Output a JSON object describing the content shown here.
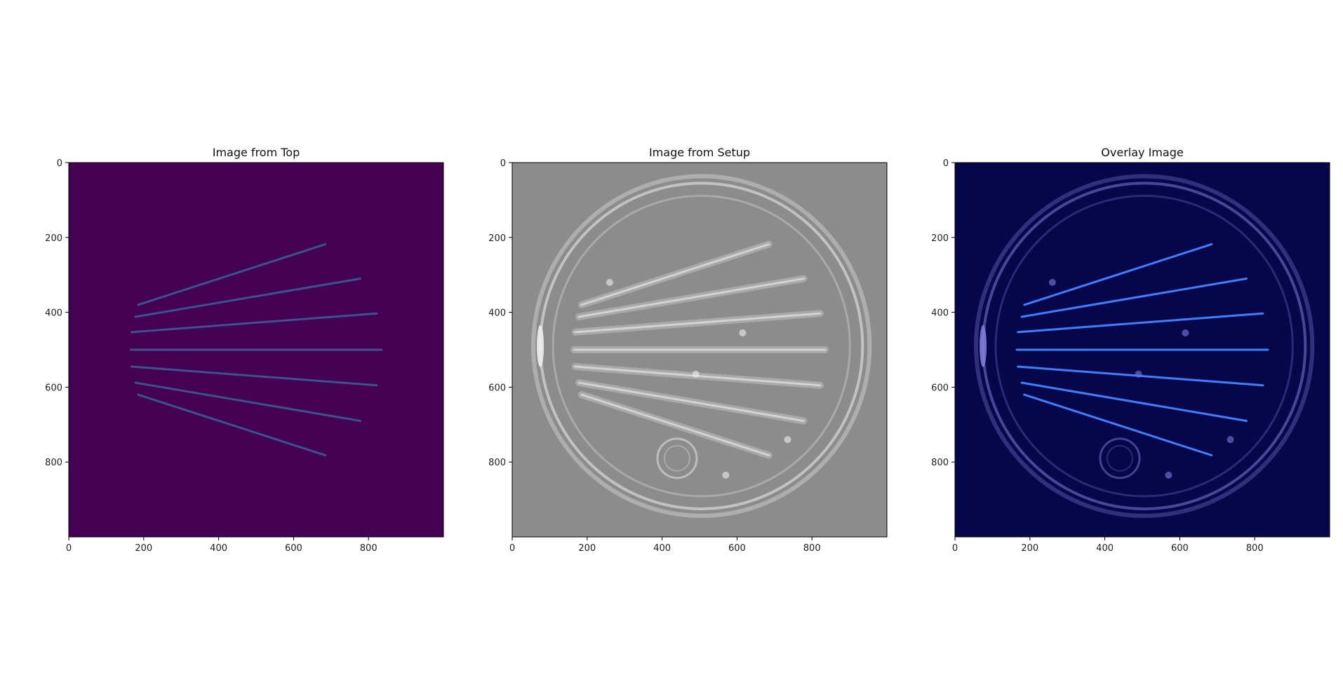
{
  "figure": {
    "background": "#ffffff"
  },
  "chart_data": [
    {
      "type": "image",
      "title": "Image from Top",
      "colormap": "viridis",
      "xlim": [
        0,
        1000
      ],
      "ylim": [
        1000,
        0
      ],
      "xticks": [
        0,
        200,
        400,
        600,
        800
      ],
      "yticks": [
        0,
        200,
        400,
        600,
        800
      ],
      "x_tick_labels": [
        "0",
        "200",
        "400",
        "600",
        "800"
      ],
      "y_tick_labels": [
        "0",
        "200",
        "400",
        "600",
        "800"
      ],
      "background_color": "#440154",
      "line_color": "#3b528b",
      "radial_lines": [
        {
          "x1": 185,
          "y1": 380,
          "x2": 685,
          "y2": 218
        },
        {
          "x1": 178,
          "y1": 412,
          "x2": 778,
          "y2": 310
        },
        {
          "x1": 168,
          "y1": 453,
          "x2": 822,
          "y2": 403
        },
        {
          "x1": 165,
          "y1": 500,
          "x2": 835,
          "y2": 500
        },
        {
          "x1": 168,
          "y1": 545,
          "x2": 822,
          "y2": 595
        },
        {
          "x1": 178,
          "y1": 588,
          "x2": 778,
          "y2": 690
        },
        {
          "x1": 185,
          "y1": 620,
          "x2": 685,
          "y2": 782
        }
      ]
    },
    {
      "type": "image",
      "title": "Image from Setup",
      "colormap": "gray",
      "xlim": [
        0,
        1000
      ],
      "ylim": [
        1000,
        0
      ],
      "xticks": [
        0,
        200,
        400,
        600,
        800
      ],
      "yticks": [
        0,
        200,
        400,
        600,
        800
      ],
      "x_tick_labels": [
        "0",
        "200",
        "400",
        "600",
        "800"
      ],
      "y_tick_labels": [
        "0",
        "200",
        "400",
        "600",
        "800"
      ],
      "background_color": "#8c8c8c",
      "dish_center": [
        505,
        490
      ],
      "dish_radius_x": 430,
      "dish_radius_y": 435,
      "highlight_color": "#eeeeee",
      "radial_lines": [
        {
          "x1": 185,
          "y1": 380,
          "x2": 685,
          "y2": 218
        },
        {
          "x1": 178,
          "y1": 412,
          "x2": 778,
          "y2": 310
        },
        {
          "x1": 168,
          "y1": 453,
          "x2": 822,
          "y2": 403
        },
        {
          "x1": 165,
          "y1": 500,
          "x2": 835,
          "y2": 500
        },
        {
          "x1": 168,
          "y1": 545,
          "x2": 822,
          "y2": 595
        },
        {
          "x1": 178,
          "y1": 588,
          "x2": 778,
          "y2": 690
        },
        {
          "x1": 185,
          "y1": 620,
          "x2": 685,
          "y2": 782
        }
      ]
    },
    {
      "type": "image",
      "title": "Overlay Image",
      "colormap": "blue overlay",
      "xlim": [
        0,
        1000
      ],
      "ylim": [
        1000,
        0
      ],
      "xticks": [
        0,
        200,
        400,
        600,
        800
      ],
      "yticks": [
        0,
        200,
        400,
        600,
        800
      ],
      "x_tick_labels": [
        "0",
        "200",
        "400",
        "600",
        "800"
      ],
      "y_tick_labels": [
        "0",
        "200",
        "400",
        "600",
        "800"
      ],
      "background_color": "#06064a",
      "dish_center": [
        505,
        490
      ],
      "dish_radius_x": 430,
      "dish_radius_y": 435,
      "highlight_color": "#7d7dd8",
      "line_color": "#3f7fff",
      "radial_lines": [
        {
          "x1": 185,
          "y1": 380,
          "x2": 685,
          "y2": 218
        },
        {
          "x1": 178,
          "y1": 412,
          "x2": 778,
          "y2": 310
        },
        {
          "x1": 168,
          "y1": 453,
          "x2": 822,
          "y2": 403
        },
        {
          "x1": 165,
          "y1": 500,
          "x2": 835,
          "y2": 500
        },
        {
          "x1": 168,
          "y1": 545,
          "x2": 822,
          "y2": 595
        },
        {
          "x1": 178,
          "y1": 588,
          "x2": 778,
          "y2": 690
        },
        {
          "x1": 185,
          "y1": 620,
          "x2": 685,
          "y2": 782
        }
      ]
    }
  ]
}
